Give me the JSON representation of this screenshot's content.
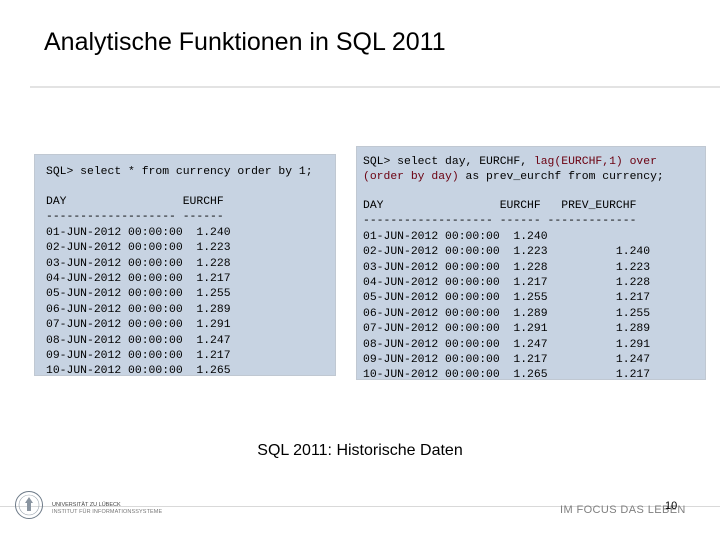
{
  "slide": {
    "title": "Analytische Funktionen in SQL 2011",
    "caption": "SQL 2011: Historische Daten",
    "page_number": "10"
  },
  "left_panel": {
    "query": "SQL> select * from currency order by 1;",
    "header": "DAY                 EURCHF",
    "separator": "------------------- ------",
    "rows": [
      "01-JUN-2012 00:00:00  1.240",
      "02-JUN-2012 00:00:00  1.223",
      "03-JUN-2012 00:00:00  1.228",
      "04-JUN-2012 00:00:00  1.217",
      "05-JUN-2012 00:00:00  1.255",
      "06-JUN-2012 00:00:00  1.289",
      "07-JUN-2012 00:00:00  1.291",
      "08-JUN-2012 00:00:00  1.247",
      "09-JUN-2012 00:00:00  1.217",
      "10-JUN-2012 00:00:00  1.265"
    ]
  },
  "right_panel": {
    "query_line1_plain": "SQL> select day, EURCHF, ",
    "query_line1_kw": "lag(EURCHF,1) over",
    "query_line2_kw": "(order by day)",
    "query_line2_plain": " as prev_eurchf from currency;",
    "header": "DAY                 EURCHF   PREV_EURCHF",
    "separator": "------------------- ------ -------------",
    "rows": [
      "01-JUN-2012 00:00:00  1.240",
      "02-JUN-2012 00:00:00  1.223          1.240",
      "03-JUN-2012 00:00:00  1.228          1.223",
      "04-JUN-2012 00:00:00  1.217          1.228",
      "05-JUN-2012 00:00:00  1.255          1.217",
      "06-JUN-2012 00:00:00  1.289          1.255",
      "07-JUN-2012 00:00:00  1.291          1.289",
      "08-JUN-2012 00:00:00  1.247          1.291",
      "09-JUN-2012 00:00:00  1.217          1.247",
      "10-JUN-2012 00:00:00  1.265          1.217"
    ]
  },
  "footer": {
    "university_line1": "UNIVERSITÄT ZU LÜBECK",
    "university_line2": "INSTITUT FÜR INFORMATIONSSYSTEME",
    "motto": "IM FOCUS DAS LEBEN"
  },
  "colors": {
    "panel_background": "#c7d3e2",
    "keyword": "#6b0010"
  }
}
